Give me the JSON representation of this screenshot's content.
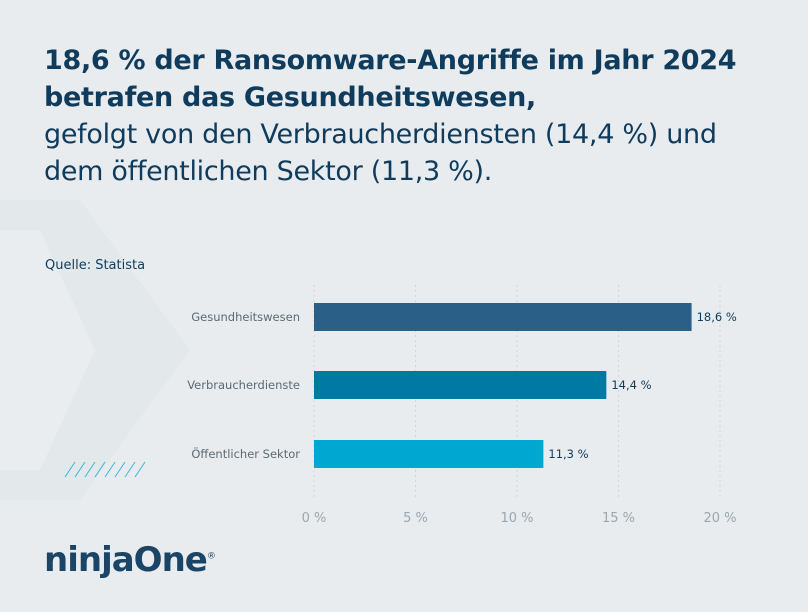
{
  "headline": {
    "bold": "18,6 % der Ransomware-Angriffe im Jahr 2024 betrafen das Gesundheitswesen,",
    "regular": "gefolgt von den Verbraucherdiensten (14,4 %) und dem öffentlichen Sektor (11,3 %)."
  },
  "source": "Quelle: Statista",
  "logo": {
    "text": "ninjaOne",
    "mark": "®"
  },
  "chart_data": {
    "type": "bar",
    "orientation": "horizontal",
    "categories": [
      "Gesundheitswesen",
      "Verbraucherdienste",
      "Öffentlicher Sektor"
    ],
    "values": [
      18.6,
      14.4,
      11.3
    ],
    "data_labels": [
      "18,6 %",
      "14,4 %",
      "11,3 %"
    ],
    "bar_colors": [
      "#2a5f88",
      "#0079a3",
      "#00a7d0"
    ],
    "xlim": [
      0,
      20
    ],
    "x_ticks": [
      0,
      5,
      10,
      15,
      20
    ],
    "x_tick_labels": [
      "0 %",
      "5 %",
      "10 %",
      "15 %",
      "20 %"
    ],
    "grid": "vertical dotted",
    "title": "",
    "xlabel": "",
    "ylabel": ""
  }
}
